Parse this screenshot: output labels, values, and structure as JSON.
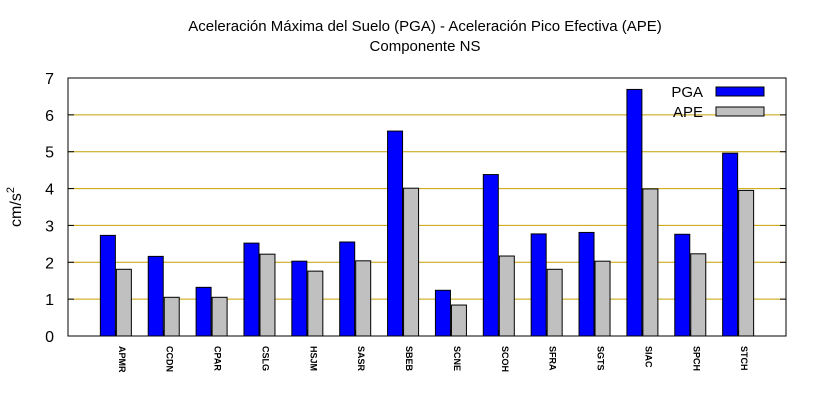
{
  "chart_data": {
    "type": "bar",
    "title": "Aceleración Máxima del Suelo (PGA) -  Aceleración Pico Efectiva (APE)",
    "subtitle": "Componente NS",
    "xlabel": "",
    "ylabel": "cm/s",
    "ylabel_sup": "2",
    "ylim": [
      0,
      7
    ],
    "yticks": [
      "0",
      "1",
      "2",
      "3",
      "4",
      "5",
      "6",
      "7"
    ],
    "grid": "horizontal",
    "legend_position": "top-right",
    "categories": [
      "APMR",
      "CCDN",
      "CPAR",
      "CSLG",
      "HSJM",
      "SASR",
      "SBEB",
      "SCNE",
      "SCOH",
      "SFRA",
      "SGTS",
      "SIAC",
      "SPCH",
      "STCH"
    ],
    "series": [
      {
        "name": "PGA",
        "color": "#0000ff",
        "values": [
          2.73,
          2.16,
          1.32,
          2.52,
          2.03,
          2.55,
          5.56,
          1.24,
          4.38,
          2.77,
          2.81,
          6.69,
          2.76,
          4.96
        ]
      },
      {
        "name": "APE",
        "color": "#c0c0c0",
        "values": [
          1.81,
          1.05,
          1.05,
          2.22,
          1.76,
          2.04,
          4.01,
          0.84,
          2.17,
          1.81,
          2.03,
          3.99,
          2.23,
          3.95
        ]
      }
    ],
    "colors": {
      "grid": "#c8a000",
      "axis": "#000000",
      "bar_edge": "#000000"
    }
  }
}
